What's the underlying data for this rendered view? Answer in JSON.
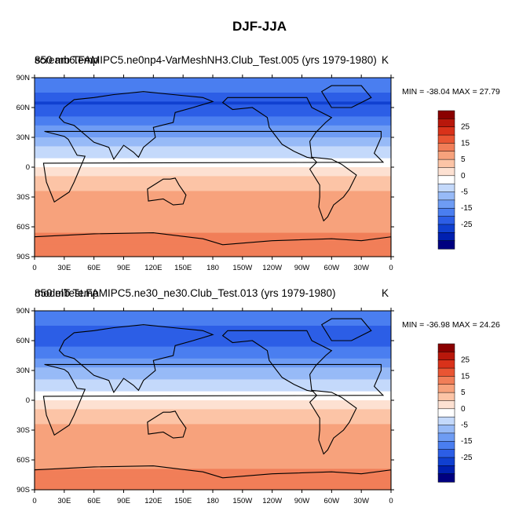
{
  "title": "DJF-JJA",
  "colors": {
    "contour_levels": [
      "#000080",
      "#0020b0",
      "#1040d0",
      "#2c5ee6",
      "#4a7ef0",
      "#6e9cf4",
      "#97baf7",
      "#c4d9fb",
      "#ffffff",
      "#fde1d2",
      "#fcc4a6",
      "#f7a27c",
      "#f17e58",
      "#e95533",
      "#d9321a",
      "#b8170b",
      "#8a0000"
    ]
  },
  "x_ticks": [
    "0",
    "30E",
    "60E",
    "90E",
    "120E",
    "150E",
    "180",
    "150W",
    "120W",
    "90W",
    "60W",
    "30W",
    "0"
  ],
  "y_ticks": [
    "90N",
    "60N",
    "30N",
    "0",
    "30S",
    "60S",
    "90S"
  ],
  "colorbar_labels": [
    "25",
    "15",
    "5",
    "0",
    "-5",
    "-15",
    "-25"
  ],
  "panels": [
    {
      "title_overlap_a": "850 mb Temp",
      "title_overlap_b": "scream6.FAMIPC5.ne0np4-VarMeshNH3.Club_Test.005 (yrs 1979-1980)",
      "units": "K",
      "minmax": "MIN = -38.04 MAX =  27.79"
    },
    {
      "title_overlap_a": "850 mb Temp",
      "title_overlap_b": "modelTest.FAMIPC5.ne30_ne30.Club_Test.013 (yrs 1979-1980)",
      "units": "K",
      "minmax": "MIN = -36.98 MAX =  24.26"
    }
  ],
  "chart_data": [
    {
      "type": "heatmap",
      "title": "DJF-JJA",
      "subtitle": "scream6.FAMIPC5.ne0np4-VarMeshNH3.Club_Test.005 (yrs 1979-1980)",
      "variable": "850 mb Temp",
      "units": "K",
      "min": -38.04,
      "max": 27.79,
      "xlim": [
        0,
        360
      ],
      "ylim": [
        -90,
        90
      ],
      "colorbar_levels": [
        -35,
        -30,
        -25,
        -20,
        -15,
        -10,
        -5,
        -2,
        0,
        2,
        5,
        10,
        15,
        20,
        25,
        30
      ],
      "zonal_profile": {
        "lat": [
          80,
          65,
          50,
          35,
          20,
          5,
          -10,
          -25,
          -40,
          -55,
          -65,
          -72
        ],
        "value": [
          -18,
          -26,
          -20,
          -12,
          -5,
          -1,
          2,
          5,
          6,
          6,
          9,
          12
        ]
      }
    },
    {
      "type": "heatmap",
      "title": "DJF-JJA",
      "subtitle": "modelTest.FAMIPC5.ne30_ne30.Club_Test.013 (yrs 1979-1980)",
      "variable": "850 mb Temp",
      "units": "K",
      "min": -36.98,
      "max": 24.26,
      "xlim": [
        0,
        360
      ],
      "ylim": [
        -90,
        90
      ],
      "colorbar_levels": [
        -35,
        -30,
        -25,
        -20,
        -15,
        -10,
        -5,
        -2,
        0,
        2,
        5,
        10,
        15,
        20,
        25,
        30
      ],
      "zonal_profile": {
        "lat": [
          80,
          65,
          50,
          35,
          20,
          5,
          -10,
          -25,
          -40,
          -55,
          -65,
          -72
        ],
        "value": [
          -17,
          -25,
          -19,
          -11,
          -4,
          -1,
          2,
          5,
          6,
          6,
          9,
          11
        ]
      }
    }
  ]
}
